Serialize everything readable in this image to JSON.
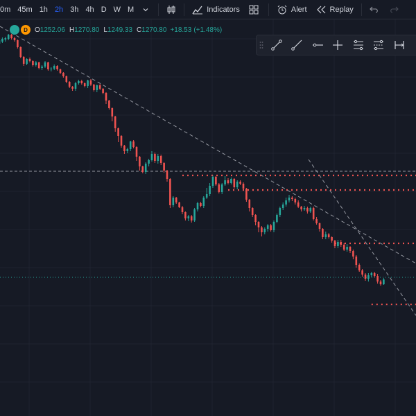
{
  "toolbar": {
    "timeframes": [
      "0m",
      "45m",
      "1h",
      "2h",
      "3h",
      "4h",
      "D",
      "W",
      "M"
    ],
    "active_timeframe": "2h",
    "indicators_label": "Indicators",
    "alert_label": "Alert",
    "replay_label": "Replay"
  },
  "legend": {
    "badge_letter": "D",
    "open_label": "O",
    "open": "1252.06",
    "high_label": "H",
    "high": "1270.80",
    "low_label": "L",
    "low": "1249.33",
    "close_label": "C",
    "close": "1270.80",
    "change": "+18.53",
    "change_pct": "(+1.48%)"
  },
  "drawing_toolbar": {
    "tools": [
      "trend-line-icon",
      "ray-icon",
      "horizontal-ray-icon",
      "cross-line-icon",
      "parallel-channel-icon",
      "regression-channel-icon",
      "date-range-icon"
    ]
  },
  "colors": {
    "background": "#161a25",
    "up": "#26a69a",
    "down": "#ef5350",
    "active_accent": "#2962ff",
    "trendline": "#9598a1",
    "level_dotted": "#ef5350",
    "current_price_line": "#26a69a"
  },
  "chart_data": {
    "type": "candlestick",
    "series": [
      {
        "name": "",
        "values": [
          [
            63,
            58,
            65,
            56
          ],
          [
            60,
            56,
            62,
            54
          ],
          [
            57,
            55,
            60,
            53
          ],
          [
            56,
            50,
            58,
            49
          ],
          [
            50,
            55,
            57,
            49
          ],
          [
            55,
            58,
            60,
            53
          ],
          [
            58,
            68,
            70,
            57
          ],
          [
            68,
            82,
            84,
            67
          ],
          [
            82,
            92,
            95,
            81
          ],
          [
            92,
            85,
            94,
            84
          ],
          [
            85,
            88,
            90,
            83
          ],
          [
            88,
            94,
            96,
            87
          ],
          [
            94,
            90,
            96,
            88
          ],
          [
            90,
            98,
            100,
            89
          ],
          [
            98,
            96,
            101,
            94
          ],
          [
            96,
            90,
            98,
            88
          ],
          [
            90,
            100,
            102,
            89
          ],
          [
            100,
            99,
            103,
            97
          ],
          [
            99,
            95,
            101,
            93
          ],
          [
            95,
            100,
            102,
            94
          ],
          [
            100,
            105,
            107,
            99
          ],
          [
            105,
            110,
            112,
            104
          ],
          [
            110,
            118,
            120,
            109
          ],
          [
            118,
            125,
            127,
            117
          ],
          [
            125,
            128,
            131,
            124
          ],
          [
            128,
            120,
            131,
            118
          ],
          [
            120,
            117,
            122,
            115
          ],
          [
            117,
            120,
            122,
            115
          ],
          [
            120,
            124,
            126,
            119
          ],
          [
            124,
            116,
            127,
            115
          ],
          [
            116,
            122,
            124,
            114
          ],
          [
            122,
            130,
            132,
            121
          ],
          [
            130,
            123,
            133,
            122
          ],
          [
            123,
            128,
            130,
            121
          ],
          [
            128,
            134,
            136,
            127
          ],
          [
            134,
            145,
            150,
            133
          ],
          [
            145,
            156,
            158,
            144
          ],
          [
            156,
            168,
            175,
            155
          ],
          [
            168,
            185,
            190,
            167
          ],
          [
            185,
            196,
            205,
            184
          ],
          [
            196,
            210,
            213,
            195
          ],
          [
            210,
            218,
            222,
            209
          ],
          [
            218,
            215,
            221,
            213
          ],
          [
            215,
            204,
            218,
            203
          ],
          [
            204,
            212,
            214,
            202
          ],
          [
            212,
            226,
            232,
            211
          ],
          [
            226,
            240,
            246,
            225
          ],
          [
            240,
            248,
            250,
            239
          ],
          [
            248,
            236,
            251,
            234
          ],
          [
            236,
            231,
            240,
            229
          ],
          [
            231,
            222,
            233,
            218
          ],
          [
            222,
            232,
            235,
            220
          ],
          [
            232,
            225,
            236,
            222
          ],
          [
            225,
            235,
            238,
            223
          ],
          [
            235,
            246,
            249,
            234
          ],
          [
            246,
            258,
            262,
            245
          ],
          [
            258,
            296,
            300,
            257
          ],
          [
            296,
            285,
            299,
            283
          ],
          [
            285,
            292,
            294,
            284
          ],
          [
            292,
            299,
            300,
            291
          ],
          [
            299,
            306,
            309,
            297
          ],
          [
            306,
            315,
            318,
            305
          ],
          [
            315,
            312,
            319,
            310
          ],
          [
            312,
            318,
            321,
            310
          ],
          [
            318,
            302,
            320,
            300
          ],
          [
            302,
            293,
            305,
            291
          ],
          [
            293,
            297,
            299,
            291
          ],
          [
            297,
            285,
            300,
            283
          ],
          [
            285,
            280,
            287,
            271
          ],
          [
            280,
            268,
            283,
            264
          ],
          [
            268,
            255,
            271,
            253
          ],
          [
            255,
            266,
            268,
            254
          ],
          [
            266,
            277,
            279,
            264
          ],
          [
            277,
            266,
            280,
            264
          ],
          [
            266,
            260,
            268,
            254
          ],
          [
            260,
            264,
            266,
            257
          ],
          [
            264,
            258,
            266,
            256
          ],
          [
            258,
            270,
            272,
            257
          ],
          [
            270,
            262,
            273,
            260
          ],
          [
            262,
            265,
            267,
            260
          ],
          [
            265,
            272,
            274,
            263
          ],
          [
            272,
            288,
            291,
            271
          ],
          [
            288,
            300,
            305,
            287
          ],
          [
            300,
            310,
            313,
            299
          ],
          [
            310,
            320,
            325,
            309
          ],
          [
            320,
            328,
            335,
            319
          ],
          [
            328,
            335,
            341,
            326
          ],
          [
            335,
            330,
            338,
            328
          ],
          [
            330,
            325,
            334,
            323
          ],
          [
            325,
            332,
            334,
            323
          ],
          [
            332,
            320,
            335,
            318
          ],
          [
            320,
            310,
            322,
            308
          ],
          [
            310,
            300,
            313,
            298
          ],
          [
            300,
            295,
            303,
            292
          ],
          [
            295,
            289,
            298,
            285
          ],
          [
            289,
            285,
            292,
            281
          ],
          [
            285,
            287,
            290,
            283
          ],
          [
            287,
            292,
            295,
            285
          ],
          [
            292,
            298,
            300,
            289
          ],
          [
            298,
            302,
            305,
            297
          ],
          [
            302,
            300,
            304,
            297
          ],
          [
            300,
            305,
            308,
            298
          ],
          [
            305,
            300,
            307,
            298
          ],
          [
            300,
            316,
            318,
            298
          ],
          [
            316,
            322,
            324,
            313
          ],
          [
            322,
            330,
            334,
            321
          ],
          [
            330,
            342,
            345,
            329
          ],
          [
            342,
            338,
            345,
            334
          ],
          [
            338,
            342,
            344,
            336
          ],
          [
            342,
            347,
            350,
            341
          ],
          [
            347,
            355,
            358,
            346
          ],
          [
            355,
            349,
            358,
            346
          ],
          [
            349,
            353,
            356,
            346
          ],
          [
            353,
            360,
            362,
            351
          ],
          [
            360,
            356,
            363,
            352
          ],
          [
            356,
            362,
            365,
            355
          ],
          [
            362,
            370,
            374,
            360
          ],
          [
            370,
            382,
            386,
            368
          ],
          [
            382,
            390,
            392,
            380
          ],
          [
            390,
            396,
            399,
            388
          ],
          [
            396,
            402,
            405,
            394
          ],
          [
            402,
            397,
            406,
            394
          ],
          [
            397,
            394,
            400,
            392
          ],
          [
            394,
            398,
            400,
            392
          ],
          [
            398,
            406,
            409,
            395
          ],
          [
            406,
            410,
            412,
            404
          ],
          [
            410,
            403,
            411,
            401
          ]
        ]
      }
    ],
    "trendlines": [
      {
        "from": [
          0,
          38
        ],
        "to": [
          600,
          380
        ]
      },
      {
        "from": [
          445,
          230
        ],
        "to": [
          600,
          455
        ]
      }
    ],
    "levels": [
      {
        "price": 247,
        "style": "dashed-gray",
        "start_index": 0
      },
      {
        "price": 253,
        "style": "dotted-red",
        "start_index": 60
      },
      {
        "price": 274,
        "style": "dotted-red",
        "start_index": 75
      },
      {
        "price": 351,
        "style": "dotted-red",
        "start_index": 110
      },
      {
        "price": 439,
        "style": "dotted-red",
        "start_index": 122
      },
      {
        "price": 400,
        "style": "dotted-green",
        "start_index": 0
      }
    ]
  }
}
